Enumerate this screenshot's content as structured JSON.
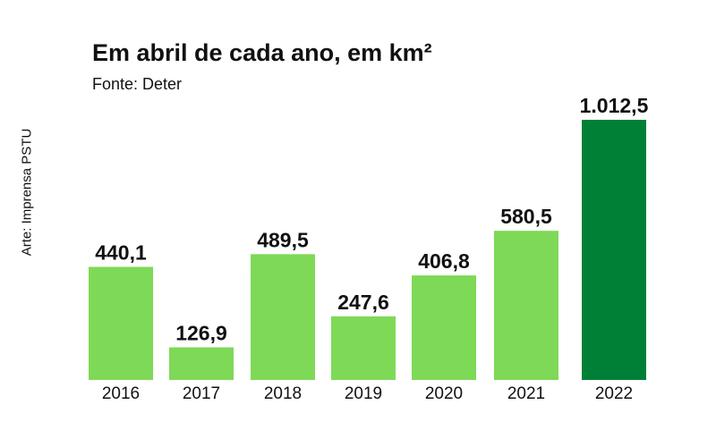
{
  "chart_data": {
    "type": "bar",
    "title": "Em abril de cada ano, em km²",
    "subtitle": "Fonte: Deter",
    "credit": "Arte: Imprensa PSTU",
    "categories": [
      "2016",
      "2017",
      "2018",
      "2019",
      "2020",
      "2021",
      "2022"
    ],
    "values": [
      440.1,
      126.9,
      489.5,
      247.6,
      406.8,
      580.5,
      1012.5
    ],
    "value_labels": [
      "440,1",
      "126,9",
      "489,5",
      "247,6",
      "406,8",
      "580,5",
      "1.012,5"
    ],
    "xlabel": "",
    "ylabel": "",
    "ylim": [
      0,
      1012.5
    ],
    "grid": false,
    "colors": {
      "default": "#7ED957",
      "highlight": "#008037"
    },
    "highlight_index": 6
  }
}
